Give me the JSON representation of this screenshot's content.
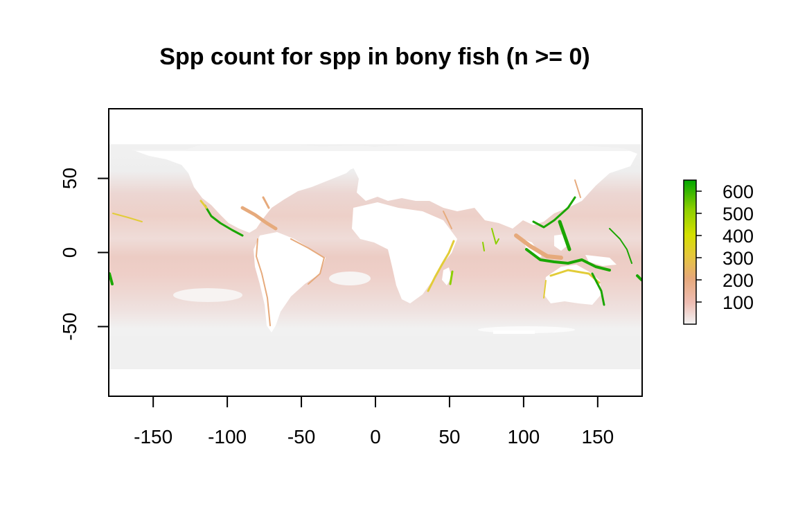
{
  "title": "Spp count for spp in bony fish (n >= 0)",
  "x_ticks": [
    {
      "value": -150,
      "label": "-150"
    },
    {
      "value": -100,
      "label": "-100"
    },
    {
      "value": -50,
      "label": "-50"
    },
    {
      "value": 0,
      "label": "0"
    },
    {
      "value": 50,
      "label": "50"
    },
    {
      "value": 100,
      "label": "100"
    },
    {
      "value": 150,
      "label": "150"
    }
  ],
  "y_ticks": [
    {
      "value": 50,
      "label": "50"
    },
    {
      "value": 0,
      "label": "0"
    },
    {
      "value": -50,
      "label": "-50"
    }
  ],
  "x_range": [
    -180,
    180
  ],
  "y_range": [
    -97,
    97
  ],
  "legend": {
    "range": [
      0,
      650
    ],
    "ticks": [
      {
        "value": 100,
        "label": "100"
      },
      {
        "value": 200,
        "label": "200"
      },
      {
        "value": 300,
        "label": "300"
      },
      {
        "value": 400,
        "label": "400"
      },
      {
        "value": 500,
        "label": "500"
      },
      {
        "value": 600,
        "label": "600"
      }
    ],
    "colors": [
      "#f2f2f2",
      "#eebdb3",
      "#e6a87a",
      "#e5c83a",
      "#d4e000",
      "#8ccf00",
      "#00a600"
    ]
  },
  "colors": {
    "ocean_low": "#f1f1f1",
    "ocean_mid": "#f0dcd8",
    "ocean_warm": "#edc9c0",
    "coast_orange": "#e6aa7c",
    "coast_yellow": "#e2cc38",
    "coast_green": "#1aa600",
    "land": "#ffffff"
  }
}
